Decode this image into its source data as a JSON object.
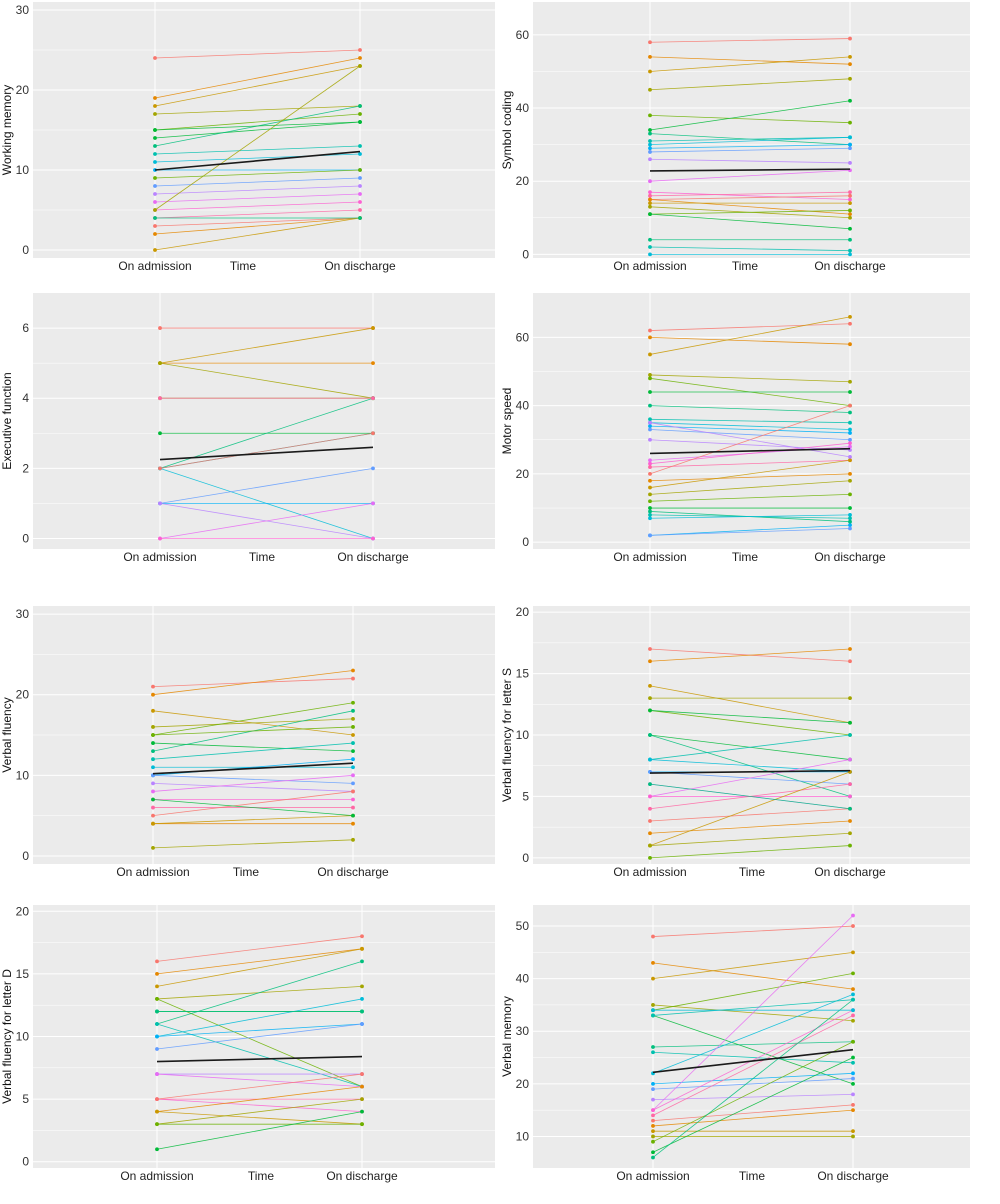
{
  "colors": {
    "panel_bg": "#ebebeb",
    "grid": "#ffffff",
    "mean_line": "#1a1a1a",
    "palette": [
      "#F8766D",
      "#E58700",
      "#C99800",
      "#A3A500",
      "#6BB100",
      "#00BA38",
      "#00BF7D",
      "#00C0AF",
      "#00BCD8",
      "#00B0F6",
      "#619CFF",
      "#B983FF",
      "#E76BF3",
      "#FD61D1",
      "#FF67A4"
    ]
  },
  "chart_data": [
    {
      "type": "line",
      "ylabel": "Working memory",
      "xlabel": "Time",
      "categories": [
        "On admission",
        "On discharge"
      ],
      "ylim": [
        -1,
        31
      ],
      "yticks": [
        0,
        10,
        20,
        30
      ],
      "participants": [
        [
          24,
          25
        ],
        [
          19,
          24
        ],
        [
          18,
          23
        ],
        [
          17,
          18
        ],
        [
          15,
          17
        ],
        [
          14,
          16
        ],
        [
          13,
          18
        ],
        [
          12,
          13
        ],
        [
          11,
          12
        ],
        [
          10,
          10
        ],
        [
          8,
          9
        ],
        [
          7,
          8
        ],
        [
          6,
          7
        ],
        [
          5,
          6
        ],
        [
          4,
          5
        ],
        [
          3,
          4
        ],
        [
          2,
          4
        ],
        [
          0,
          4
        ],
        [
          5,
          23
        ],
        [
          9,
          10
        ],
        [
          15,
          16
        ],
        [
          4,
          4
        ]
      ],
      "mean": [
        10,
        12.3
      ]
    },
    {
      "type": "line",
      "ylabel": "Symbol coding",
      "xlabel": "Time",
      "categories": [
        "On admission",
        "On discharge"
      ],
      "ylim": [
        -1,
        69
      ],
      "yticks": [
        0,
        20,
        40,
        60
      ],
      "participants": [
        [
          58,
          59
        ],
        [
          54,
          52
        ],
        [
          50,
          54
        ],
        [
          45,
          48
        ],
        [
          38,
          36
        ],
        [
          34,
          42
        ],
        [
          33,
          30
        ],
        [
          31,
          32
        ],
        [
          30,
          32
        ],
        [
          29,
          30
        ],
        [
          28,
          29
        ],
        [
          26,
          25
        ],
        [
          20,
          23
        ],
        [
          17,
          15
        ],
        [
          16,
          17
        ],
        [
          15,
          16
        ],
        [
          15,
          11
        ],
        [
          14,
          14
        ],
        [
          13,
          10
        ],
        [
          11,
          12
        ],
        [
          11,
          7
        ],
        [
          4,
          4
        ],
        [
          2,
          1
        ],
        [
          0,
          0
        ]
      ],
      "mean": [
        22.8,
        23.3
      ]
    },
    {
      "type": "line",
      "ylabel": "Executive function",
      "xlabel": "Time",
      "categories": [
        "On admission",
        "On discharge"
      ],
      "ylim": [
        -0.3,
        7
      ],
      "yticks": [
        0,
        2,
        4,
        6
      ],
      "participants": [
        [
          6,
          6
        ],
        [
          5,
          5
        ],
        [
          5,
          6
        ],
        [
          5,
          4
        ],
        [
          4,
          4
        ],
        [
          3,
          3
        ],
        [
          2,
          4
        ],
        [
          2,
          3
        ],
        [
          2,
          0
        ],
        [
          1,
          1
        ],
        [
          1,
          2
        ],
        [
          1,
          0
        ],
        [
          0,
          1
        ],
        [
          0,
          0
        ],
        [
          4,
          4
        ],
        [
          2,
          3
        ]
      ],
      "mean": [
        2.25,
        2.6
      ]
    },
    {
      "type": "line",
      "ylabel": "Motor speed",
      "xlabel": "Time",
      "categories": [
        "On admission",
        "On discharge"
      ],
      "ylim": [
        -2,
        73
      ],
      "yticks": [
        0,
        20,
        40,
        60
      ],
      "participants": [
        [
          62,
          64
        ],
        [
          60,
          58
        ],
        [
          55,
          66
        ],
        [
          49,
          47
        ],
        [
          48,
          40
        ],
        [
          44,
          44
        ],
        [
          40,
          38
        ],
        [
          36,
          35
        ],
        [
          35,
          33
        ],
        [
          34,
          32
        ],
        [
          33,
          30
        ],
        [
          30,
          27
        ],
        [
          24,
          28
        ],
        [
          23,
          29
        ],
        [
          22,
          24
        ],
        [
          20,
          40
        ],
        [
          18,
          20
        ],
        [
          16,
          24
        ],
        [
          14,
          18
        ],
        [
          12,
          14
        ],
        [
          10,
          10
        ],
        [
          9,
          6
        ],
        [
          8,
          7
        ],
        [
          7,
          8
        ],
        [
          2,
          5
        ],
        [
          2,
          4
        ],
        [
          35,
          25
        ]
      ],
      "mean": [
        26,
        27.4
      ]
    },
    {
      "type": "line",
      "ylabel": "Verbal fluency",
      "xlabel": "Time",
      "categories": [
        "On admission",
        "On discharge"
      ],
      "ylim": [
        -1,
        31
      ],
      "yticks": [
        0,
        10,
        20,
        30
      ],
      "participants": [
        [
          21,
          22
        ],
        [
          20,
          23
        ],
        [
          18,
          15
        ],
        [
          16,
          17
        ],
        [
          15,
          19
        ],
        [
          14,
          13
        ],
        [
          13,
          18
        ],
        [
          12,
          14
        ],
        [
          11,
          11
        ],
        [
          10,
          12
        ],
        [
          10,
          9
        ],
        [
          9,
          8
        ],
        [
          8,
          10
        ],
        [
          7,
          7
        ],
        [
          6,
          6
        ],
        [
          5,
          8
        ],
        [
          4,
          4
        ],
        [
          4,
          5
        ],
        [
          1,
          2
        ],
        [
          15,
          16
        ],
        [
          7,
          5
        ]
      ],
      "mean": [
        10.2,
        11.5
      ]
    },
    {
      "type": "line",
      "ylabel": "Verbal fluency for letter S",
      "xlabel": "Time",
      "categories": [
        "On admission",
        "On discharge"
      ],
      "ylim": [
        -0.5,
        20.5
      ],
      "yticks": [
        0,
        5,
        10,
        15,
        20
      ],
      "participants": [
        [
          17,
          16
        ],
        [
          16,
          17
        ],
        [
          14,
          11
        ],
        [
          13,
          13
        ],
        [
          12,
          10
        ],
        [
          10,
          8
        ],
        [
          10,
          5
        ],
        [
          8,
          10
        ],
        [
          8,
          7
        ],
        [
          7,
          7
        ],
        [
          7,
          6
        ],
        [
          6,
          4
        ],
        [
          5,
          8
        ],
        [
          5,
          5
        ],
        [
          4,
          6
        ],
        [
          3,
          4
        ],
        [
          2,
          3
        ],
        [
          1,
          7
        ],
        [
          1,
          2
        ],
        [
          0,
          1
        ],
        [
          12,
          11
        ],
        [
          6,
          4
        ]
      ],
      "mean": [
        6.9,
        7.1
      ]
    },
    {
      "type": "line",
      "ylabel": "Verbal fluency for letter D",
      "xlabel": "Time",
      "categories": [
        "On admission",
        "On discharge"
      ],
      "ylim": [
        -0.5,
        20.5
      ],
      "yticks": [
        0,
        5,
        10,
        15,
        20
      ],
      "participants": [
        [
          16,
          18
        ],
        [
          15,
          17
        ],
        [
          14,
          17
        ],
        [
          13,
          14
        ],
        [
          13,
          6
        ],
        [
          12,
          12
        ],
        [
          11,
          16
        ],
        [
          11,
          6
        ],
        [
          10,
          13
        ],
        [
          10,
          11
        ],
        [
          9,
          11
        ],
        [
          7,
          7
        ],
        [
          7,
          6
        ],
        [
          5,
          4
        ],
        [
          5,
          5
        ],
        [
          5,
          7
        ],
        [
          4,
          6
        ],
        [
          4,
          3
        ],
        [
          3,
          5
        ],
        [
          3,
          3
        ],
        [
          1,
          4
        ],
        [
          12,
          12
        ]
      ],
      "mean": [
        8,
        8.4
      ]
    },
    {
      "type": "line",
      "ylabel": "Verbal memory",
      "xlabel": "Time",
      "categories": [
        "On admission",
        "On discharge"
      ],
      "ylim": [
        4,
        54
      ],
      "yticks": [
        10,
        20,
        30,
        40,
        50
      ],
      "participants": [
        [
          48,
          50
        ],
        [
          43,
          38
        ],
        [
          40,
          45
        ],
        [
          35,
          32
        ],
        [
          34,
          41
        ],
        [
          33,
          20
        ],
        [
          27,
          28
        ],
        [
          26,
          24
        ],
        [
          22,
          37
        ],
        [
          20,
          22
        ],
        [
          19,
          21
        ],
        [
          17,
          18
        ],
        [
          15,
          52
        ],
        [
          15,
          34
        ],
        [
          14,
          33
        ],
        [
          13,
          16
        ],
        [
          12,
          15
        ],
        [
          11,
          11
        ],
        [
          10,
          10
        ],
        [
          9,
          28
        ],
        [
          7,
          25
        ],
        [
          6,
          36
        ],
        [
          33,
          36
        ],
        [
          34,
          34
        ]
      ],
      "mean": [
        22.2,
        26.5
      ]
    }
  ]
}
